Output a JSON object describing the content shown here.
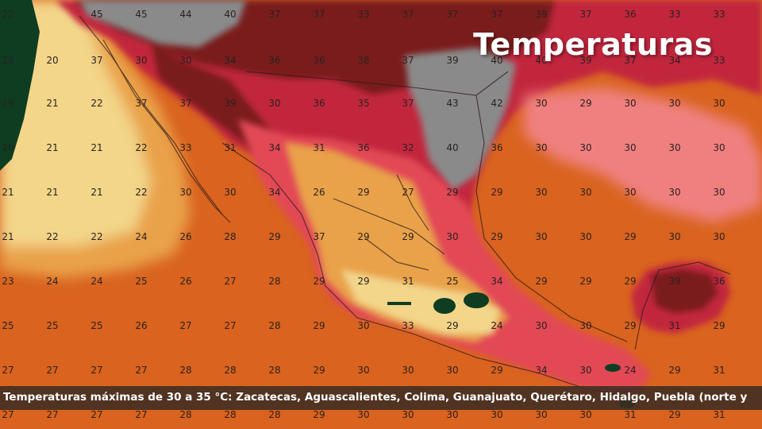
{
  "title": "Temperaturas",
  "ticker": {
    "text": "Temperaturas máximas de 30 a 35 °C: Zacatecas, Aguascalientes, Colima, Guanajuato, Querétaro, Hidalgo, Puebla (norte y"
  },
  "colors": {
    "ocean_base": "#d9631f",
    "very_hot": "#7a1a1f",
    "hot": "#c2283c",
    "warm": "#f08080",
    "mild": "#e9a24a",
    "cool": "#f3d68a",
    "cold": "#0e3d22",
    "no_data": "#8a8a8a",
    "label_text": "#2a2220"
  },
  "temperature_rows": [
    [
      "22",
      "",
      "45",
      "45",
      "44",
      "40",
      "37",
      "37",
      "33",
      "37",
      "37",
      "37",
      "39",
      "37",
      "36",
      "33",
      "33"
    ],
    [
      "19",
      "20",
      "37",
      "30",
      "30",
      "34",
      "36",
      "36",
      "38",
      "37",
      "39",
      "40",
      "40",
      "39",
      "37",
      "34",
      "33"
    ],
    [
      "19",
      "21",
      "22",
      "37",
      "37",
      "39",
      "30",
      "36",
      "35",
      "37",
      "43",
      "42",
      "30",
      "29",
      "30",
      "30",
      "30"
    ],
    [
      "20",
      "21",
      "21",
      "22",
      "33",
      "31",
      "34",
      "31",
      "36",
      "32",
      "40",
      "36",
      "30",
      "30",
      "30",
      "30",
      "30"
    ],
    [
      "21",
      "21",
      "21",
      "22",
      "30",
      "30",
      "34",
      "26",
      "29",
      "27",
      "29",
      "29",
      "30",
      "30",
      "30",
      "30",
      "30"
    ],
    [
      "21",
      "22",
      "22",
      "24",
      "26",
      "28",
      "29",
      "37",
      "29",
      "29",
      "30",
      "29",
      "30",
      "30",
      "29",
      "30",
      "30"
    ],
    [
      "23",
      "24",
      "24",
      "25",
      "26",
      "27",
      "28",
      "29",
      "29",
      "31",
      "25",
      "34",
      "29",
      "29",
      "29",
      "39",
      "36"
    ],
    [
      "25",
      "25",
      "25",
      "26",
      "27",
      "27",
      "28",
      "29",
      "30",
      "33",
      "29",
      "24",
      "30",
      "30",
      "29",
      "31",
      "29"
    ],
    [
      "27",
      "27",
      "27",
      "27",
      "28",
      "28",
      "28",
      "29",
      "30",
      "30",
      "30",
      "29",
      "34",
      "30",
      "24",
      "29",
      "31"
    ],
    [
      "27",
      "27",
      "27",
      "27",
      "28",
      "28",
      "28",
      "29",
      "30",
      "30",
      "30",
      "30",
      "30",
      "30",
      "31",
      "29",
      "31"
    ]
  ]
}
